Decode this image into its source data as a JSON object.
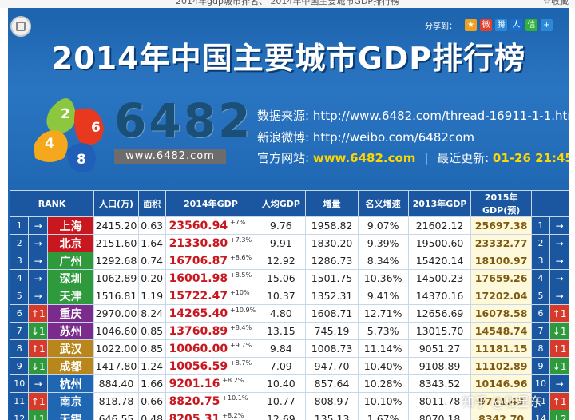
{
  "browser": {
    "title": "2014年gdp城市排名、 2014年中国主要城市GDP排行榜",
    "favorite": "☆收藏"
  },
  "share": {
    "label": "分享到：",
    "icons": [
      {
        "name": "qzone-icon",
        "color": "#f0a020",
        "glyph": "★"
      },
      {
        "name": "weibo-icon",
        "color": "#e04030",
        "glyph": "微"
      },
      {
        "name": "tencent-weibo-icon",
        "color": "#2a8ad8",
        "glyph": "腾"
      },
      {
        "name": "renren-icon",
        "color": "#1a70c8",
        "glyph": "人"
      },
      {
        "name": "wechat-icon",
        "color": "#32b23a",
        "glyph": "信"
      },
      {
        "name": "more-icon",
        "color": "#2a8ad8",
        "glyph": "+"
      }
    ]
  },
  "title": "2014年中国主要城市GDP排行榜",
  "logo": {
    "numbers": [
      "2",
      "6",
      "4",
      "8"
    ],
    "brand": "6482",
    "site": "www.6482.com"
  },
  "info": {
    "source_label": "数据来源:",
    "source_url": "http://www.6482.com/thread-16911-1-1.html",
    "weibo_label": "新浪微博:",
    "weibo_url": "http://weibo.com/6482com",
    "official_label": "官方网站:",
    "official_site": "www.6482.com",
    "sep": "|",
    "update_label": "最近更新:",
    "update_time": "01-26 21:45"
  },
  "table": {
    "headers": {
      "rank": "RANK",
      "pop": "人口(万)",
      "area": "面积",
      "gdp2014": "2014年GDP",
      "per": "人均GDP",
      "growth": "增量",
      "nominal": "名义增速",
      "gdp2013": "2013年GDP",
      "gdp2015": "2015年GDP(预)"
    },
    "rows": [
      {
        "rank": "1",
        "move": "→",
        "city": "上海",
        "color": "#c8171e",
        "pop": "2415.20",
        "area": "0.63",
        "gdp": "23560.94",
        "pct": "+7%",
        "per": "9.76",
        "growth": "1958.82",
        "nominal": "9.07%",
        "g2013": "21602.12",
        "g2015": "25697.38",
        "rank2": "1",
        "move2": "→"
      },
      {
        "rank": "2",
        "move": "→",
        "city": "北京",
        "color": "#c8171e",
        "pop": "2151.60",
        "area": "1.64",
        "gdp": "21330.80",
        "pct": "+7.3%",
        "per": "9.91",
        "growth": "1830.20",
        "nominal": "9.39%",
        "g2013": "19500.60",
        "g2015": "23332.77",
        "rank2": "2",
        "move2": "→"
      },
      {
        "rank": "3",
        "move": "→",
        "city": "广州",
        "color": "#2f9a3c",
        "pop": "1292.68",
        "area": "0.74",
        "gdp": "16706.87",
        "pct": "+8.6%",
        "per": "12.92",
        "growth": "1286.73",
        "nominal": "8.34%",
        "g2013": "15420.14",
        "g2015": "18100.97",
        "rank2": "3",
        "move2": "→"
      },
      {
        "rank": "4",
        "move": "→",
        "city": "深圳",
        "color": "#2f9a3c",
        "pop": "1062.89",
        "area": "0.20",
        "gdp": "16001.98",
        "pct": "+8.5%",
        "per": "15.06",
        "growth": "1501.75",
        "nominal": "10.36%",
        "g2013": "14500.23",
        "g2015": "17659.26",
        "rank2": "4",
        "move2": "→"
      },
      {
        "rank": "5",
        "move": "→",
        "city": "天津",
        "color": "#2f9a3c",
        "pop": "1516.81",
        "area": "1.19",
        "gdp": "15722.47",
        "pct": "+10%",
        "per": "10.37",
        "growth": "1352.31",
        "nominal": "9.41%",
        "g2013": "14370.16",
        "g2015": "17202.04",
        "rank2": "5",
        "move2": "→"
      },
      {
        "rank": "6",
        "move": "↑1",
        "city": "重庆",
        "color": "#7a2b8c",
        "pop": "2970.00",
        "area": "8.24",
        "gdp": "14265.40",
        "pct": "+10.9%",
        "per": "4.80",
        "growth": "1608.71",
        "nominal": "12.71%",
        "g2013": "12656.69",
        "g2015": "16078.58",
        "rank2": "6",
        "move2": "↑1"
      },
      {
        "rank": "7",
        "move": "↓1",
        "city": "苏州",
        "color": "#7a2b8c",
        "pop": "1046.60",
        "area": "0.85",
        "gdp": "13760.89",
        "pct": "+8.4%",
        "per": "13.15",
        "growth": "745.19",
        "nominal": "5.73%",
        "g2013": "13015.70",
        "g2015": "14548.74",
        "rank2": "7",
        "move2": "↓1"
      },
      {
        "rank": "8",
        "move": "↑1",
        "city": "武汉",
        "color": "#b8861a",
        "pop": "1022.00",
        "area": "0.85",
        "gdp": "10060.00",
        "pct": "+9.7%",
        "per": "9.84",
        "growth": "1008.73",
        "nominal": "11.14%",
        "g2013": "9051.27",
        "g2015": "11181.15",
        "rank2": "8",
        "move2": "↑1"
      },
      {
        "rank": "9",
        "move": "↓1",
        "city": "成都",
        "color": "#b8861a",
        "pop": "1417.80",
        "area": "1.24",
        "gdp": "10056.59",
        "pct": "+8.7%",
        "per": "7.09",
        "growth": "947.70",
        "nominal": "10.40%",
        "g2013": "9108.89",
        "g2015": "11102.89",
        "rank2": "9",
        "move2": "↓1"
      },
      {
        "rank": "10",
        "move": "→",
        "city": "杭州",
        "color": "#1f67b3",
        "pop": "884.40",
        "area": "1.66",
        "gdp": "9201.16",
        "pct": "+8.2%",
        "per": "10.40",
        "growth": "857.64",
        "nominal": "10.28%",
        "g2013": "8343.52",
        "g2015": "10146.96",
        "rank2": "10",
        "move2": "→"
      },
      {
        "rank": "11",
        "move": "↑1",
        "city": "南京",
        "color": "#1f67b3",
        "pop": "818.78",
        "area": "0.66",
        "gdp": "8820.75",
        "pct": "+10.1%",
        "per": "10.77",
        "growth": "808.97",
        "nominal": "10.10%",
        "g2013": "8011.78",
        "g2015": "9711.43",
        "rank2": "11",
        "move2": "↑1"
      },
      {
        "rank": "12",
        "move": "↓1",
        "city": "无锡",
        "color": "#1f67b3",
        "pop": "646.55",
        "area": "0.48",
        "gdp": "8205.31",
        "pct": "+8.2%",
        "per": "12.69",
        "growth": "135.13",
        "nominal": "1.67%",
        "g2013": "8070.18",
        "g2015": "8342.70",
        "rank2": "14",
        "move2": "↓2"
      }
    ]
  },
  "watermark": "知乎 @杜星东"
}
